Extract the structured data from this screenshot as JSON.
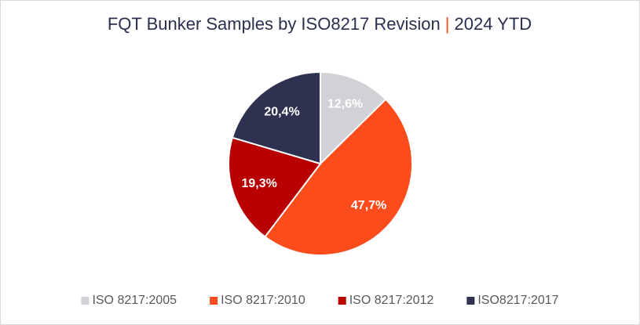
{
  "chart_data": {
    "type": "pie",
    "title_parts": [
      {
        "text": "FQT Bunker Samples by ISO8217 Revision",
        "color": "#2b2f4e"
      },
      {
        "text": "|",
        "color": "#fc4c1c"
      },
      {
        "text": "2024 YTD",
        "color": "#2b2f4e"
      }
    ],
    "categories": [
      "ISO 8217:2005",
      "ISO 8217:2010",
      "ISO 8217:2012",
      "ISO8217:2017"
    ],
    "values": [
      12.6,
      47.7,
      19.3,
      20.4
    ],
    "value_labels": [
      "12,6%",
      "47,7%",
      "19,3%",
      "20,4%"
    ],
    "colors": [
      "#d1d1d6",
      "#fc4c1c",
      "#b80000",
      "#2e3250"
    ],
    "legend": "bottom"
  }
}
